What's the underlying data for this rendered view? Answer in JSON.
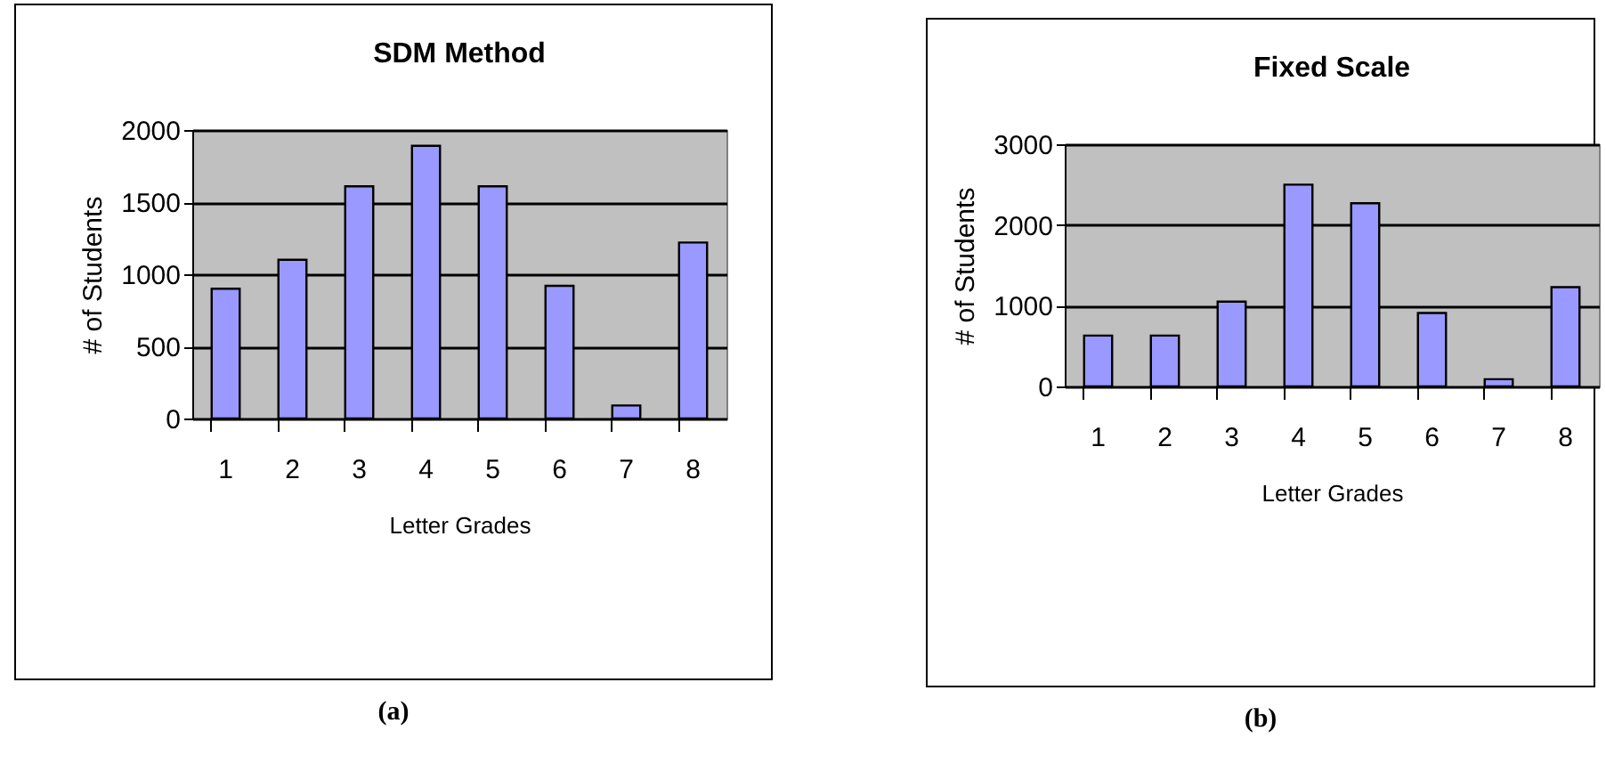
{
  "chart_data": [
    {
      "type": "bar",
      "title": "SDM Method",
      "xlabel": "Letter Grades",
      "ylabel": "# of Students",
      "categories": [
        "1",
        "2",
        "3",
        "4",
        "5",
        "6",
        "7",
        "8"
      ],
      "values": [
        900,
        1100,
        1610,
        1890,
        1610,
        920,
        90,
        1220
      ],
      "color": "#9999ff",
      "ylim": [
        0,
        2000
      ],
      "yticks": [
        0,
        500,
        1000,
        1500,
        2000
      ],
      "grid": "y",
      "annotations": [
        "(a)"
      ]
    },
    {
      "type": "bar",
      "title": "Fixed Scale",
      "xlabel": "Letter Grades",
      "ylabel": "# of Students",
      "categories": [
        "1",
        "2",
        "3",
        "4",
        "5",
        "6",
        "7",
        "8"
      ],
      "values": [
        630,
        630,
        1050,
        2500,
        2270,
        910,
        90,
        1230
      ],
      "color": "#9999ff",
      "ylim": [
        0,
        3000
      ],
      "yticks": [
        0,
        1000,
        2000,
        3000
      ],
      "grid": "y",
      "annotations": [
        "(b)"
      ]
    }
  ]
}
